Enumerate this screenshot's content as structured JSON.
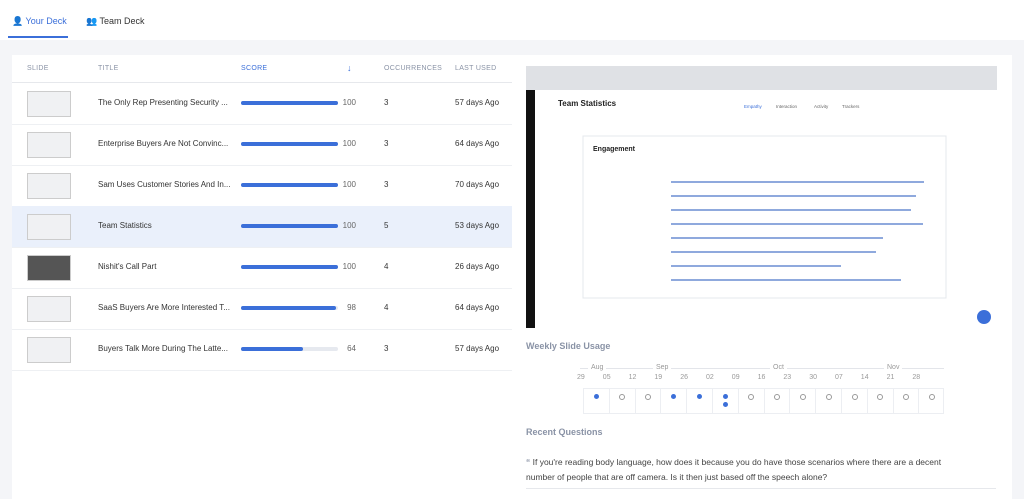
{
  "tabs": [
    "Your Deck",
    "Team Deck"
  ],
  "table": {
    "headers": [
      "SLIDE",
      "TITLE",
      "SCORE",
      "OCCURRENCES",
      "LAST USED"
    ],
    "rows": [
      {
        "title": "The Only Rep Presenting Security ...",
        "score": 100,
        "occurrences": 3,
        "last_used": "57 days Ago"
      },
      {
        "title": "Enterprise Buyers Are Not Convinc...",
        "score": 100,
        "occurrences": 3,
        "last_used": "64 days Ago"
      },
      {
        "title": "Sam Uses Customer Stories And In...",
        "score": 100,
        "occurrences": 3,
        "last_used": "70 days Ago"
      },
      {
        "title": "Team Statistics",
        "score": 100,
        "occurrences": 5,
        "last_used": "53 days Ago"
      },
      {
        "title": "Nishit's Call Part",
        "score": 100,
        "occurrences": 4,
        "last_used": "26 days Ago"
      },
      {
        "title": "SaaS Buyers Are More Interested T...",
        "score": 98,
        "occurrences": 4,
        "last_used": "64 days Ago"
      },
      {
        "title": "Buyers Talk More During The Latte...",
        "score": 64,
        "occurrences": 3,
        "last_used": "57 days Ago"
      }
    ]
  },
  "preview": {
    "title": "Team Statistics",
    "tabs": [
      "Empathy",
      "Interaction",
      "Activity",
      "Trackers"
    ],
    "card_title": "Engagement"
  },
  "weekly_usage": {
    "title": "Weekly Slide Usage",
    "months": [
      "Aug",
      "Sep",
      "Oct",
      "Nov"
    ],
    "days": [
      "29",
      "05",
      "12",
      "19",
      "26",
      "02",
      "09",
      "16",
      "23",
      "30",
      "07",
      "14",
      "21",
      "28"
    ],
    "counts": [
      1,
      0,
      0,
      1,
      1,
      2,
      0,
      0,
      0,
      0,
      0,
      0,
      0,
      0
    ]
  },
  "recent_questions": {
    "title": "Recent Questions",
    "items": [
      "If you're reading body language, how does it because you do have those scenarios where there are a decent number of people that are off camera. Is it then just based off the speech alone?"
    ]
  }
}
